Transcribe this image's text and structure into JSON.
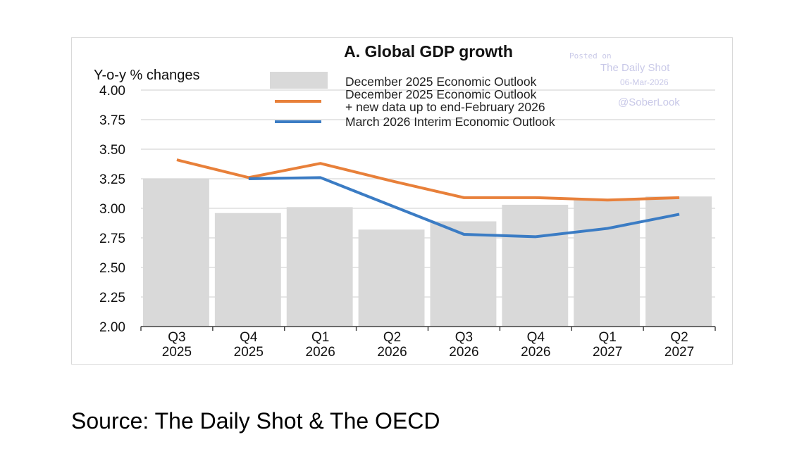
{
  "chart_data": {
    "type": "bar+line",
    "title": "A. Global GDP growth",
    "ylabel": "Y-o-y % changes",
    "ylim": [
      2.0,
      4.0
    ],
    "yticks": [
      "4.00",
      "3.75",
      "3.50",
      "3.25",
      "3.00",
      "2.75",
      "2.50",
      "2.25",
      "2.00"
    ],
    "grid": true,
    "legend_placement": "top",
    "categories": [
      [
        "Q3",
        "2025"
      ],
      [
        "Q4",
        "2025"
      ],
      [
        "Q1",
        "2026"
      ],
      [
        "Q2",
        "2026"
      ],
      [
        "Q3",
        "2026"
      ],
      [
        "Q4",
        "2026"
      ],
      [
        "Q1",
        "2027"
      ],
      [
        "Q2",
        "2027"
      ]
    ],
    "series": [
      {
        "name": "December 2025 Economic Outlook",
        "kind": "bar",
        "color": "#d9d9d9",
        "values": [
          3.25,
          2.96,
          3.01,
          2.82,
          2.89,
          3.03,
          3.07,
          3.1
        ]
      },
      {
        "name": "December 2025 Economic Outlook + new data up to end-February 2026",
        "name_lines": [
          "December 2025 Economic Outlook",
          "+ new data up to end-February 2026"
        ],
        "kind": "line",
        "color": "#e8803a",
        "values": [
          3.41,
          3.26,
          3.38,
          3.23,
          3.09,
          3.09,
          3.07,
          3.09
        ]
      },
      {
        "name": "March 2026 Interim Economic Outlook",
        "kind": "line",
        "color": "#3b7cc4",
        "values": [
          null,
          3.25,
          3.26,
          3.02,
          2.78,
          2.76,
          2.83,
          2.95
        ]
      }
    ],
    "watermark": [
      "Posted on",
      "The Daily Shot",
      "06-Mar-2026",
      "@SoberLook"
    ]
  },
  "source": "Source:  The Daily Shot & The OECD"
}
